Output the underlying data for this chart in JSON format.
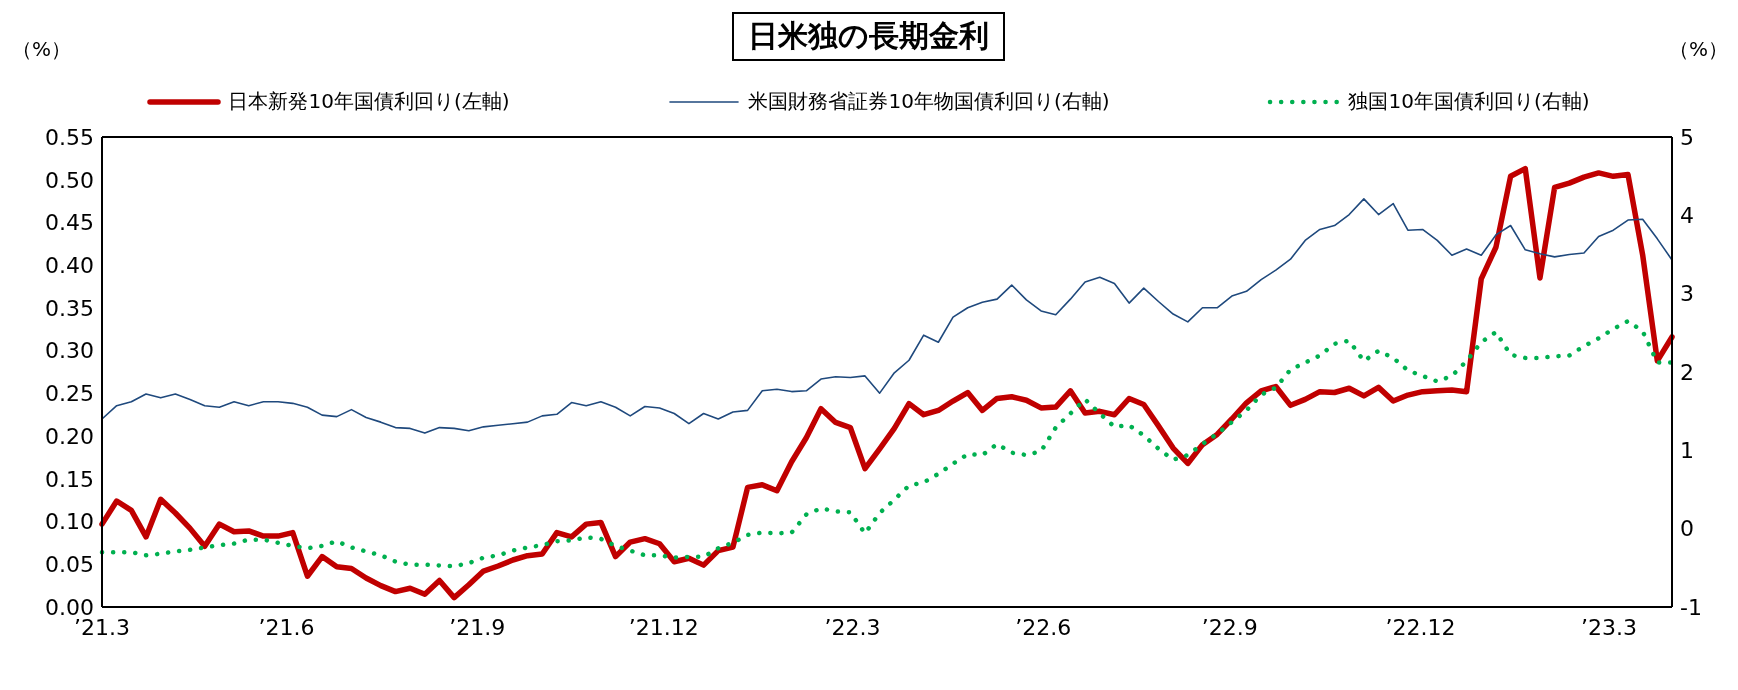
{
  "chart_data": {
    "type": "line",
    "title": "日米独の長期金利",
    "ylabel": "（%）",
    "y2label": "（%）",
    "legend": "top",
    "x": [
      "2021-03-05",
      "2021-03-12",
      "2021-03-19",
      "2021-03-26",
      "2021-04-02",
      "2021-04-09",
      "2021-04-16",
      "2021-04-23",
      "2021-04-30",
      "2021-05-07",
      "2021-05-14",
      "2021-05-21",
      "2021-05-28",
      "2021-06-04",
      "2021-06-11",
      "2021-06-18",
      "2021-06-25",
      "2021-07-02",
      "2021-07-09",
      "2021-07-16",
      "2021-07-23",
      "2021-07-30",
      "2021-08-06",
      "2021-08-13",
      "2021-08-20",
      "2021-08-27",
      "2021-09-03",
      "2021-09-10",
      "2021-09-17",
      "2021-09-24",
      "2021-10-01",
      "2021-10-08",
      "2021-10-15",
      "2021-10-22",
      "2021-10-29",
      "2021-11-05",
      "2021-11-12",
      "2021-11-19",
      "2021-11-26",
      "2021-12-03",
      "2021-12-10",
      "2021-12-17",
      "2021-12-24",
      "2021-12-31",
      "2022-01-07",
      "2022-01-14",
      "2022-01-21",
      "2022-01-28",
      "2022-02-04",
      "2022-02-11",
      "2022-02-18",
      "2022-02-25",
      "2022-03-04",
      "2022-03-11",
      "2022-03-18",
      "2022-03-25",
      "2022-04-01",
      "2022-04-08",
      "2022-04-15",
      "2022-04-22",
      "2022-04-29",
      "2022-05-06",
      "2022-05-13",
      "2022-05-20",
      "2022-05-27",
      "2022-06-03",
      "2022-06-10",
      "2022-06-17",
      "2022-06-24",
      "2022-07-01",
      "2022-07-08",
      "2022-07-15",
      "2022-07-22",
      "2022-07-29",
      "2022-08-05",
      "2022-08-12",
      "2022-08-19",
      "2022-08-26",
      "2022-09-02",
      "2022-09-09",
      "2022-09-16",
      "2022-09-23",
      "2022-09-30",
      "2022-10-07",
      "2022-10-14",
      "2022-10-21",
      "2022-10-28",
      "2022-11-04",
      "2022-11-11",
      "2022-11-18",
      "2022-11-25",
      "2022-12-02",
      "2022-12-09",
      "2022-12-16",
      "2022-12-23",
      "2022-12-30",
      "2023-01-06",
      "2023-01-13",
      "2023-01-20",
      "2023-01-27",
      "2023-02-03",
      "2023-02-10",
      "2023-02-17",
      "2023-02-24",
      "2023-03-03",
      "2023-03-10",
      "2023-03-17",
      "2023-03-24"
    ],
    "xlim": [
      "2021-03-05",
      "2023-03-24"
    ],
    "xticks": [
      {
        "value": "2021-03-05",
        "label": "’21.3"
      },
      {
        "value": "2021-06-01",
        "label": "’21.6"
      },
      {
        "value": "2021-08-31",
        "label": "’21.9"
      },
      {
        "value": "2021-11-28",
        "label": "’21.12"
      },
      {
        "value": "2022-02-26",
        "label": "’22.3"
      },
      {
        "value": "2022-05-28",
        "label": "’22.6"
      },
      {
        "value": "2022-08-25",
        "label": "’22.9"
      },
      {
        "value": "2022-11-24",
        "label": "’22.12"
      },
      {
        "value": "2023-02-22",
        "label": "’23.3"
      }
    ],
    "ylim": [
      0,
      0.55
    ],
    "yticks": [
      {
        "value": 0,
        "label": "0.00"
      },
      {
        "value": 0.05,
        "label": "0.05"
      },
      {
        "value": 0.1,
        "label": "0.10"
      },
      {
        "value": 0.15,
        "label": "0.15"
      },
      {
        "value": 0.2,
        "label": "0.20"
      },
      {
        "value": 0.25,
        "label": "0.25"
      },
      {
        "value": 0.3,
        "label": "0.30"
      },
      {
        "value": 0.35,
        "label": "0.35"
      },
      {
        "value": 0.4,
        "label": "0.40"
      },
      {
        "value": 0.45,
        "label": "0.45"
      },
      {
        "value": 0.5,
        "label": "0.50"
      },
      {
        "value": 0.55,
        "label": "0.55"
      }
    ],
    "y2lim": [
      -1,
      5
    ],
    "y2ticks": [
      -1,
      0,
      1,
      2,
      3,
      4,
      5
    ],
    "series": [
      {
        "name": "日本新発10年国債利回り(左軸)",
        "color": "#c00000",
        "line_style": "solid",
        "values": [
          0.097,
          0.124,
          0.113,
          0.082,
          0.126,
          0.11,
          0.092,
          0.071,
          0.097,
          0.088,
          0.089,
          0.083,
          0.083,
          0.087,
          0.036,
          0.059,
          0.047,
          0.045,
          0.034,
          0.025,
          0.018,
          0.022,
          0.015,
          0.031,
          0.011,
          0.026,
          0.042,
          0.048,
          0.055,
          0.06,
          0.062,
          0.087,
          0.082,
          0.097,
          0.099,
          0.059,
          0.076,
          0.08,
          0.074,
          0.053,
          0.057,
          0.049,
          0.066,
          0.07,
          0.14,
          0.143,
          0.136,
          0.17,
          0.198,
          0.232,
          0.216,
          0.21,
          0.162,
          0.185,
          0.209,
          0.238,
          0.225,
          0.23,
          0.241,
          0.251,
          0.23,
          0.244,
          0.246,
          0.242,
          0.233,
          0.234,
          0.253,
          0.227,
          0.229,
          0.225,
          0.244,
          0.237,
          0.212,
          0.186,
          0.168,
          0.19,
          0.202,
          0.22,
          0.239,
          0.253,
          0.258,
          0.236,
          0.243,
          0.252,
          0.251,
          0.256,
          0.247,
          0.257,
          0.241,
          0.248,
          0.252,
          0.253,
          0.254,
          0.252,
          0.384,
          0.421,
          0.504,
          0.513,
          0.385,
          0.491,
          0.496,
          0.503,
          0.508,
          0.504,
          0.506,
          0.412,
          0.288,
          0.316
        ]
      },
      {
        "name": "米国財務省証券10年物国債利回り(右軸)",
        "color": "#1f497d",
        "line_style": "solid",
        "axis": "y2",
        "values": [
          1.4,
          1.57,
          1.62,
          1.72,
          1.67,
          1.72,
          1.65,
          1.57,
          1.55,
          1.62,
          1.57,
          1.62,
          1.62,
          1.6,
          1.55,
          1.45,
          1.43,
          1.52,
          1.42,
          1.36,
          1.29,
          1.28,
          1.22,
          1.29,
          1.28,
          1.25,
          1.3,
          1.32,
          1.34,
          1.36,
          1.44,
          1.46,
          1.61,
          1.57,
          1.62,
          1.55,
          1.44,
          1.56,
          1.54,
          1.47,
          1.34,
          1.47,
          1.4,
          1.49,
          1.51,
          1.76,
          1.78,
          1.75,
          1.76,
          1.91,
          1.94,
          1.93,
          1.95,
          1.73,
          1.99,
          2.15,
          2.47,
          2.38,
          2.7,
          2.82,
          2.89,
          2.93,
          3.11,
          2.92,
          2.78,
          2.73,
          2.93,
          3.15,
          3.21,
          3.13,
          2.88,
          3.07,
          2.9,
          2.74,
          2.64,
          2.82,
          2.82,
          2.97,
          3.03,
          3.18,
          3.3,
          3.44,
          3.68,
          3.82,
          3.87,
          4.01,
          4.21,
          4.01,
          4.15,
          3.81,
          3.82,
          3.68,
          3.49,
          3.57,
          3.49,
          3.75,
          3.87,
          3.56,
          3.51,
          3.47,
          3.5,
          3.52,
          3.73,
          3.81,
          3.94,
          3.95,
          3.7,
          3.43
        ]
      },
      {
        "name": "独国10年国債利回り(右軸)",
        "color": "#00b050",
        "line_style": "dotted",
        "axis": "y2",
        "values": [
          -0.3,
          -0.3,
          -0.3,
          -0.34,
          -0.32,
          -0.29,
          -0.27,
          -0.24,
          -0.21,
          -0.19,
          -0.14,
          -0.14,
          -0.18,
          -0.22,
          -0.25,
          -0.22,
          -0.16,
          -0.24,
          -0.29,
          -0.34,
          -0.42,
          -0.46,
          -0.46,
          -0.47,
          -0.48,
          -0.44,
          -0.37,
          -0.34,
          -0.28,
          -0.24,
          -0.21,
          -0.16,
          -0.15,
          -0.11,
          -0.13,
          -0.22,
          -0.28,
          -0.34,
          -0.34,
          -0.37,
          -0.36,
          -0.36,
          -0.25,
          -0.18,
          -0.08,
          -0.05,
          -0.06,
          -0.05,
          0.18,
          0.26,
          0.22,
          0.21,
          -0.06,
          0.2,
          0.37,
          0.55,
          0.59,
          0.7,
          0.83,
          0.95,
          0.94,
          1.08,
          0.97,
          0.94,
          0.99,
          1.29,
          1.47,
          1.65,
          1.47,
          1.3,
          1.32,
          1.19,
          1.02,
          0.88,
          0.94,
          1.08,
          1.21,
          1.36,
          1.51,
          1.71,
          1.8,
          2.03,
          2.12,
          2.21,
          2.36,
          2.4,
          2.14,
          2.27,
          2.18,
          2.02,
          1.95,
          1.88,
          1.95,
          2.14,
          2.38,
          2.51,
          2.22,
          2.18,
          2.18,
          2.2,
          2.21,
          2.33,
          2.43,
          2.55,
          2.65,
          2.52,
          2.12,
          2.12
        ]
      }
    ]
  }
}
